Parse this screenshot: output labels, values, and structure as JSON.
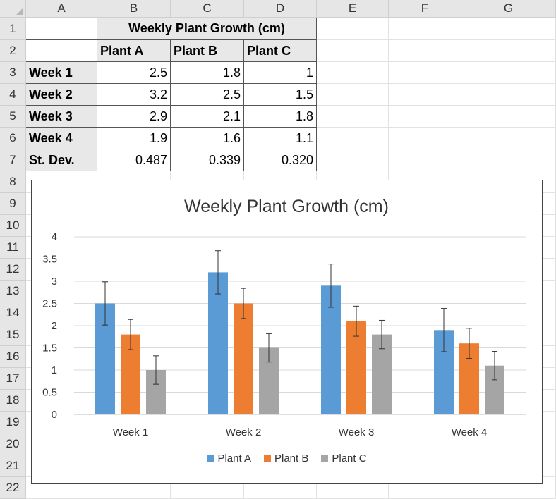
{
  "columns": [
    "A",
    "B",
    "C",
    "D",
    "E",
    "F",
    "G"
  ],
  "rows": [
    "1",
    "2",
    "3",
    "4",
    "5",
    "6",
    "7",
    "8",
    "9",
    "10",
    "11",
    "12",
    "13",
    "14",
    "15",
    "16",
    "17",
    "18",
    "19",
    "20",
    "21",
    "22"
  ],
  "table": {
    "title": "Weekly Plant Growth (cm)",
    "headers": [
      "Plant A",
      "Plant B",
      "Plant C"
    ],
    "body": [
      {
        "label": "Week 1",
        "values": [
          "2.5",
          "1.8",
          "1"
        ]
      },
      {
        "label": "Week 2",
        "values": [
          "3.2",
          "2.5",
          "1.5"
        ]
      },
      {
        "label": "Week 3",
        "values": [
          "2.9",
          "2.1",
          "1.8"
        ]
      },
      {
        "label": "Week 4",
        "values": [
          "1.9",
          "1.6",
          "1.1"
        ]
      },
      {
        "label": "St. Dev.",
        "values": [
          "0.487",
          "0.339",
          "0.320"
        ]
      }
    ]
  },
  "chart_data": {
    "type": "bar",
    "title": "Weekly Plant Growth (cm)",
    "categories": [
      "Week 1",
      "Week 2",
      "Week 3",
      "Week 4"
    ],
    "series": [
      {
        "name": "Plant A",
        "color": "#5b9bd5",
        "values": [
          2.5,
          3.2,
          2.9,
          1.9
        ],
        "error": 0.487
      },
      {
        "name": "Plant B",
        "color": "#ed7d31",
        "values": [
          1.8,
          2.5,
          2.1,
          1.6
        ],
        "error": 0.339
      },
      {
        "name": "Plant C",
        "color": "#a5a5a5",
        "values": [
          1,
          1.5,
          1.8,
          1.1
        ],
        "error": 0.32
      }
    ],
    "ylim": [
      0,
      4
    ],
    "yticks": [
      "0",
      "0.5",
      "1",
      "1.5",
      "2",
      "2.5",
      "3",
      "3.5",
      "4"
    ],
    "grid": true,
    "legend": "bottom"
  }
}
